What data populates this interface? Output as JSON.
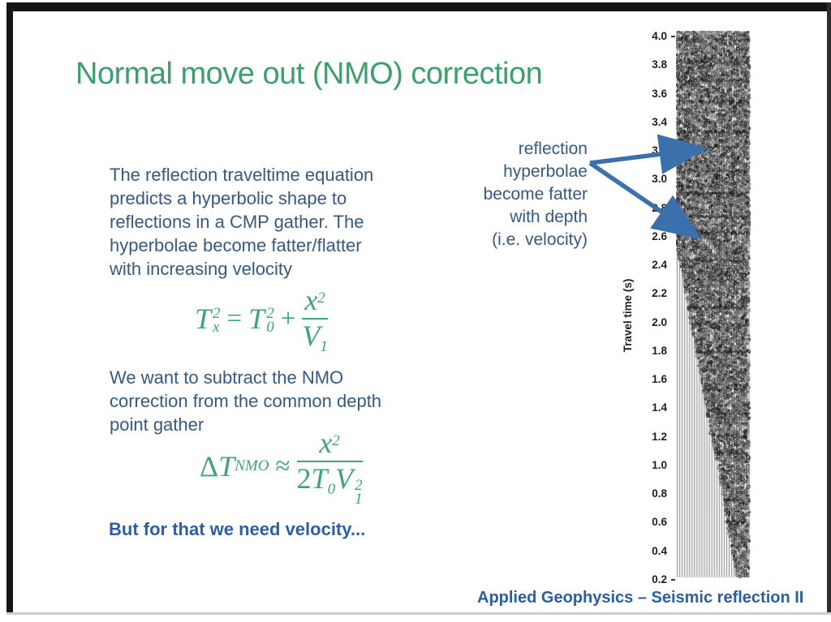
{
  "slide": {
    "title": "Normal move out (NMO) correction",
    "paragraph1": "The reflection traveltime equation\npredicts a hyperbolic shape to\nreflections in a CMP gather.  The\nhyperbolae become fatter/flatter\nwith increasing velocity",
    "paragraph2": "We want to subtract the NMO\ncorrection from the common depth\npoint gather",
    "emphasis": "But for that we need velocity...",
    "footer": "Applied Geophysics – Seismic reflection II"
  },
  "annotation": {
    "text": "reflection\nhyperbolae\nbecome fatter\nwith depth\n(i.e. velocity)"
  },
  "equation1": {
    "t1_base": "T",
    "t1_sup": "2",
    "t1_sub": "x",
    "equals": "=",
    "t2_base": "T",
    "t2_sup": "2",
    "t2_sub": "0",
    "plus": "+",
    "num_base": "x",
    "num_sup": "2",
    "den_base": "V",
    "den_sub": "1"
  },
  "equation2": {
    "delta": "Δ",
    "t_base": "T",
    "t_sub": "NMO",
    "approx": "≈",
    "num_base": "x",
    "num_sup": "2",
    "den_coef": "2",
    "den_t": "T",
    "den_t_sub": "0",
    "den_v": "V",
    "den_v_sup": "2",
    "den_v_sub": "1"
  },
  "seismic": {
    "axis_label": "Travel time  (s)",
    "tick_labels": [
      "4.0",
      "3.8",
      "3.6",
      "3.4",
      "3.2",
      "3.0",
      "2.8",
      "2.6",
      "2.4",
      "2.2",
      "2.0",
      "1.8",
      "1.6",
      "1.4",
      "1.2",
      "1.0",
      "0.8",
      "0.6",
      "0.4",
      "0.2"
    ]
  },
  "colors": {
    "title_green": "#3da06a",
    "equation_green": "#3fa478",
    "body_blue": "#35597f",
    "emphasis_blue": "#2d5fa6",
    "footer_blue": "#2a5f9e",
    "arrow_blue": "#3a70ac",
    "frame_dark": "#151515"
  }
}
